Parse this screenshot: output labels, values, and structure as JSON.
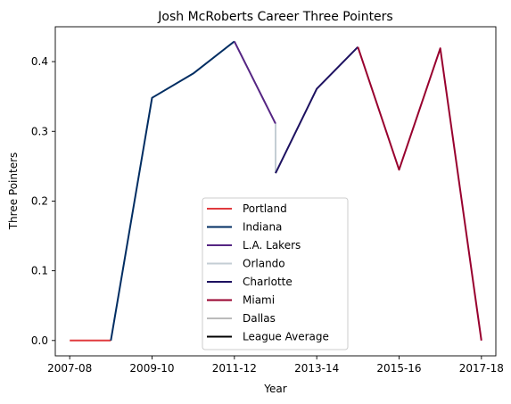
{
  "chart_data": {
    "type": "line",
    "title": "Josh McRoberts Career Three Pointers",
    "xlabel": "Year",
    "ylabel": "Three Pointers",
    "x_tick_labels": [
      "2007-08",
      "2009-10",
      "2011-12",
      "2013-14",
      "2015-16",
      "2017-18"
    ],
    "x_tick_positions": [
      0,
      2,
      4,
      6,
      8,
      10
    ],
    "y_ticks": [
      0.0,
      0.1,
      0.2,
      0.3,
      0.4
    ],
    "y_tick_labels": [
      "0.0",
      "0.1",
      "0.2",
      "0.3",
      "0.4"
    ],
    "xlim": [
      -0.35,
      10.35
    ],
    "ylim": [
      -0.022,
      0.45
    ],
    "grid": false,
    "legend_position": "lower-center",
    "series": [
      {
        "name": "Portland",
        "color": "#E03A3E",
        "points": [
          [
            0,
            0.0
          ],
          [
            1,
            0.0
          ]
        ]
      },
      {
        "name": "Indiana",
        "color": "#002D62",
        "points": [
          [
            1,
            0.0
          ],
          [
            2,
            0.348
          ],
          [
            3,
            0.383
          ],
          [
            4,
            0.429
          ]
        ]
      },
      {
        "name": "L.A. Lakers",
        "color": "#552583",
        "points": [
          [
            4,
            0.429
          ],
          [
            5,
            0.311
          ]
        ]
      },
      {
        "name": "Orlando",
        "color": "#C4CED4",
        "points": [
          [
            5,
            0.311
          ],
          [
            5,
            0.24
          ]
        ]
      },
      {
        "name": "Charlotte",
        "color": "#1D1160",
        "points": [
          [
            5,
            0.24
          ],
          [
            6,
            0.361
          ],
          [
            7,
            0.421
          ]
        ]
      },
      {
        "name": "Miami",
        "color": "#98002E",
        "points": [
          [
            7,
            0.421
          ],
          [
            8,
            0.245
          ],
          [
            9,
            0.419
          ],
          [
            10,
            0.0
          ]
        ]
      },
      {
        "name": "Dallas",
        "color": "#BBBBBB",
        "points": []
      },
      {
        "name": "League Average",
        "color": "#000000",
        "points": []
      }
    ]
  }
}
